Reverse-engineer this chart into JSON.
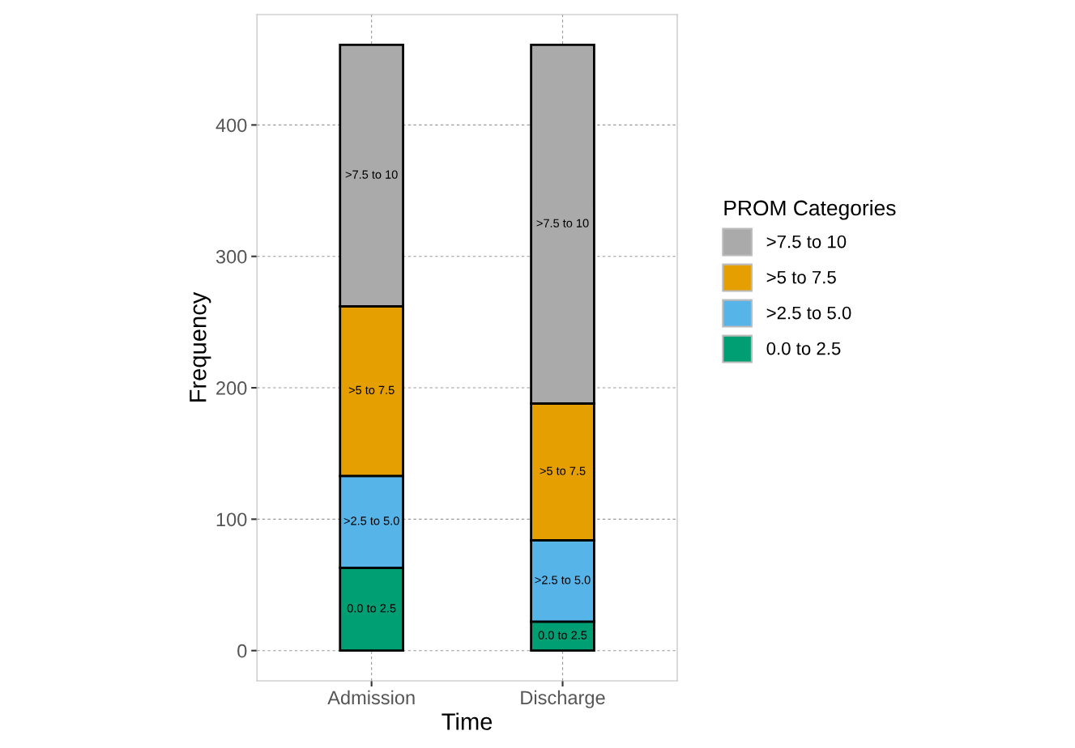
{
  "chart_data": {
    "type": "bar",
    "stacked": true,
    "xlabel": "Time",
    "ylabel": "Frequency",
    "legend_title": "PROM Categories",
    "categories": [
      "Admission",
      "Discharge"
    ],
    "series": [
      {
        "name": "0.0 to 2.5",
        "color": "#009e73",
        "values": [
          63,
          22
        ]
      },
      {
        "name": ">2.5 to 5.0",
        "color": "#56b4e9",
        "values": [
          70,
          62
        ]
      },
      {
        "name": ">5 to 7.5",
        "color": "#e69f00",
        "values": [
          129,
          104
        ]
      },
      {
        "name": ">7.5 to 10",
        "color": "#aaaaaa",
        "values": [
          199,
          273
        ]
      }
    ],
    "ylim": [
      -23,
      484
    ],
    "yticks": [
      0,
      100,
      200,
      300,
      400
    ],
    "grid": true,
    "legend": "right"
  }
}
